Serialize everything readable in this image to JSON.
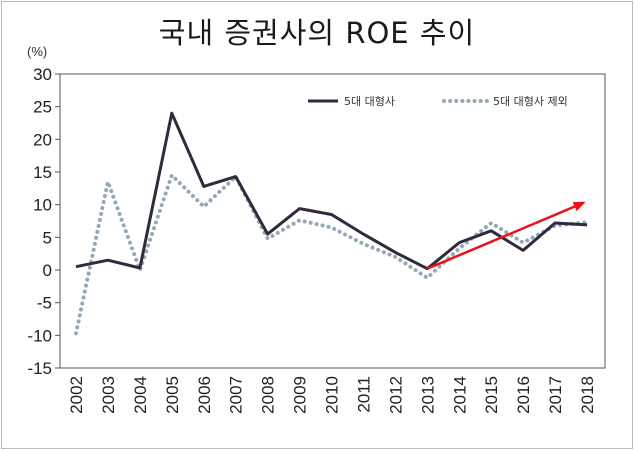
{
  "title": "국내 증권사의 ROE 추이",
  "unit_label": "(%)",
  "chart_data": {
    "type": "line",
    "title": "국내 증권사의 ROE 추이",
    "ylabel": "(%)",
    "xlabel": "",
    "ylim": [
      -15,
      30
    ],
    "yticks": [
      -15,
      -10,
      -5,
      0,
      5,
      10,
      15,
      20,
      25,
      30
    ],
    "grid": false,
    "legend_position": "top-right",
    "categories": [
      "2002",
      "2003",
      "2004",
      "2005",
      "2006",
      "2007",
      "2008",
      "2009",
      "2010",
      "2011",
      "2012",
      "2013",
      "2014",
      "2015",
      "2016",
      "2017",
      "2018"
    ],
    "series": [
      {
        "name": "5대 대형사",
        "style": "solid",
        "color": "#2f2a3d",
        "values": [
          0.5,
          1.5,
          0.3,
          24.0,
          12.8,
          14.3,
          5.5,
          9.4,
          8.5,
          5.5,
          2.7,
          0.2,
          4.2,
          6.0,
          3.0,
          7.2,
          6.9
        ]
      },
      {
        "name": "5대 대형사 제외",
        "style": "dotted",
        "color": "#93aab5",
        "values": [
          -9.7,
          13.5,
          0.0,
          14.5,
          9.7,
          14.3,
          4.8,
          7.6,
          6.5,
          4.0,
          2.0,
          -1.2,
          3.3,
          7.2,
          4.2,
          6.8,
          7.3
        ]
      }
    ],
    "annotations": [
      {
        "type": "arrow",
        "color": "#e8131b",
        "from": {
          "x": "2013",
          "y": 0.2
        },
        "to": {
          "x": "2017.9",
          "y": 10.3
        }
      }
    ]
  }
}
